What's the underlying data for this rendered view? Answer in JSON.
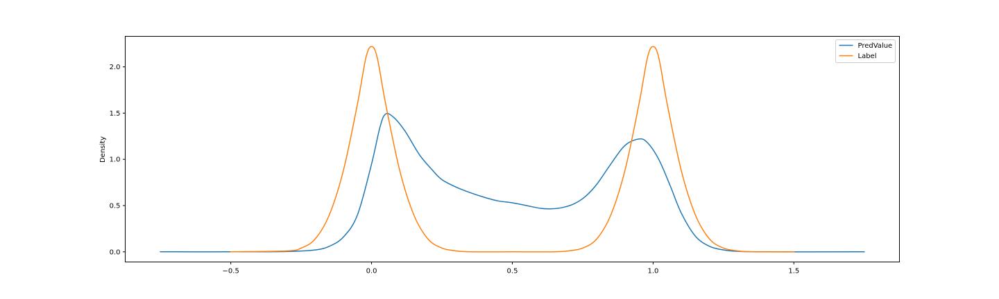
{
  "chart_data": {
    "type": "line",
    "title": "",
    "xlabel": "",
    "ylabel": "Density",
    "xlim": [
      -0.875,
      1.875
    ],
    "ylim": [
      -0.11,
      2.33
    ],
    "xticks": [
      -0.5,
      0.0,
      0.5,
      1.0,
      1.5
    ],
    "xtick_labels": [
      "−0.5",
      "0.0",
      "0.5",
      "1.0",
      "1.5"
    ],
    "yticks": [
      0.0,
      0.5,
      1.0,
      1.5,
      2.0
    ],
    "ytick_labels": [
      "0.0",
      "0.5",
      "1.0",
      "1.5",
      "2.0"
    ],
    "grid": false,
    "legend_position": "top-right",
    "series": [
      {
        "name": "PredValue",
        "color": "#1f77b4",
        "points": [
          [
            -0.75,
            0.0
          ],
          [
            -0.5,
            0.0
          ],
          [
            -0.3,
            0.003
          ],
          [
            -0.2,
            0.02
          ],
          [
            -0.15,
            0.06
          ],
          [
            -0.1,
            0.16
          ],
          [
            -0.05,
            0.4
          ],
          [
            0.0,
            0.95
          ],
          [
            0.03,
            1.35
          ],
          [
            0.05,
            1.49
          ],
          [
            0.08,
            1.45
          ],
          [
            0.12,
            1.3
          ],
          [
            0.17,
            1.05
          ],
          [
            0.22,
            0.87
          ],
          [
            0.25,
            0.78
          ],
          [
            0.3,
            0.7
          ],
          [
            0.35,
            0.64
          ],
          [
            0.4,
            0.59
          ],
          [
            0.45,
            0.55
          ],
          [
            0.5,
            0.53
          ],
          [
            0.55,
            0.5
          ],
          [
            0.6,
            0.47
          ],
          [
            0.64,
            0.465
          ],
          [
            0.68,
            0.48
          ],
          [
            0.72,
            0.52
          ],
          [
            0.76,
            0.6
          ],
          [
            0.8,
            0.73
          ],
          [
            0.85,
            0.95
          ],
          [
            0.9,
            1.15
          ],
          [
            0.95,
            1.22
          ],
          [
            0.98,
            1.18
          ],
          [
            1.02,
            1.0
          ],
          [
            1.06,
            0.72
          ],
          [
            1.1,
            0.42
          ],
          [
            1.15,
            0.17
          ],
          [
            1.2,
            0.06
          ],
          [
            1.25,
            0.02
          ],
          [
            1.3,
            0.005
          ],
          [
            1.4,
            0.0
          ],
          [
            1.75,
            0.0
          ]
        ]
      },
      {
        "name": "Label",
        "color": "#ff7f0e",
        "points": [
          [
            -0.5,
            0.0
          ],
          [
            -0.3,
            0.01
          ],
          [
            -0.25,
            0.04
          ],
          [
            -0.2,
            0.14
          ],
          [
            -0.15,
            0.4
          ],
          [
            -0.1,
            0.88
          ],
          [
            -0.05,
            1.6
          ],
          [
            -0.02,
            2.1
          ],
          [
            0.0,
            2.22
          ],
          [
            0.02,
            2.1
          ],
          [
            0.05,
            1.6
          ],
          [
            0.1,
            0.88
          ],
          [
            0.15,
            0.4
          ],
          [
            0.2,
            0.14
          ],
          [
            0.25,
            0.04
          ],
          [
            0.3,
            0.01
          ],
          [
            0.35,
            0.0
          ],
          [
            0.5,
            0.0
          ],
          [
            0.65,
            0.0
          ],
          [
            0.7,
            0.01
          ],
          [
            0.75,
            0.04
          ],
          [
            0.8,
            0.14
          ],
          [
            0.85,
            0.4
          ],
          [
            0.9,
            0.88
          ],
          [
            0.95,
            1.6
          ],
          [
            0.98,
            2.1
          ],
          [
            1.0,
            2.22
          ],
          [
            1.02,
            2.1
          ],
          [
            1.05,
            1.6
          ],
          [
            1.1,
            0.88
          ],
          [
            1.15,
            0.4
          ],
          [
            1.2,
            0.14
          ],
          [
            1.25,
            0.04
          ],
          [
            1.3,
            0.01
          ],
          [
            1.35,
            0.0
          ],
          [
            1.5,
            0.0
          ]
        ]
      }
    ]
  }
}
